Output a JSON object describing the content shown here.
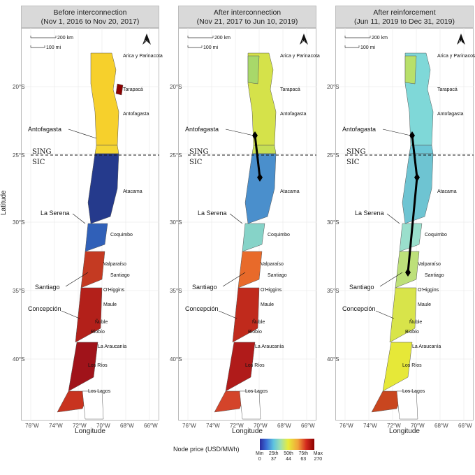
{
  "panels": [
    {
      "title_line1": "Before interconnection",
      "title_line2": "(Nov 1, 2016 to Nov 20, 2017)"
    },
    {
      "title_line1": "After interconnection",
      "title_line2": "(Nov 21, 2017 to Jun 10, 2019)"
    },
    {
      "title_line1": "After reinforcement",
      "title_line2": "(Jun 11, 2019 to Dec 31, 2019)"
    }
  ],
  "scale_km": "200 km",
  "scale_mi": "100 mi",
  "north": "N",
  "y_ticks": [
    "20°S",
    "25°S",
    "30°S",
    "35°S",
    "40°S"
  ],
  "x_ticks": [
    "76°W",
    "74°W",
    "72°W",
    "70°W",
    "68°W",
    "66°W"
  ],
  "x_label": "Longitude",
  "y_label": "Latitude",
  "regions": [
    "Arica y Parinacota",
    "Tarapacá",
    "Antofagasta",
    "Atacama",
    "Coquimbo",
    "Valparaíso",
    "Santiago",
    "O'Higgins",
    "Maule",
    "Ñuble",
    "Biobío",
    "La Araucanía",
    "Los Ríos",
    "Los Lagos"
  ],
  "cities": [
    "Antofagasta",
    "La Serena",
    "Santiago",
    "Concepción"
  ],
  "sing": "SING",
  "sic": "SIC",
  "legend": {
    "title": "Node price (USD/MWh)",
    "labels": [
      {
        "top": "Min",
        "bottom": "0"
      },
      {
        "top": "25th",
        "bottom": "37"
      },
      {
        "top": "50th",
        "bottom": "44"
      },
      {
        "top": "75th",
        "bottom": "63"
      },
      {
        "top": "Max",
        "bottom": "270"
      }
    ]
  }
}
